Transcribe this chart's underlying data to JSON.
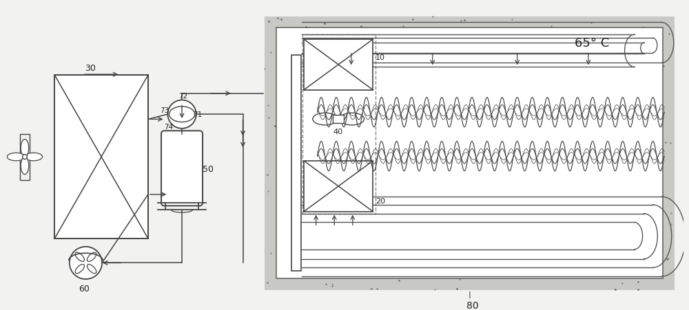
{
  "bg_color": "#f2f2f0",
  "line_color": "#444444",
  "white": "#ffffff",
  "label_80": "80",
  "label_30": "30",
  "label_50": "50",
  "label_60": "60",
  "label_10": "10",
  "label_20": "20",
  "label_40": "40",
  "label_71": "71",
  "label_72": "72",
  "label_73": "73",
  "label_74": "74",
  "label_65": "65° C",
  "fig_w": 10.0,
  "fig_h": 4.51
}
